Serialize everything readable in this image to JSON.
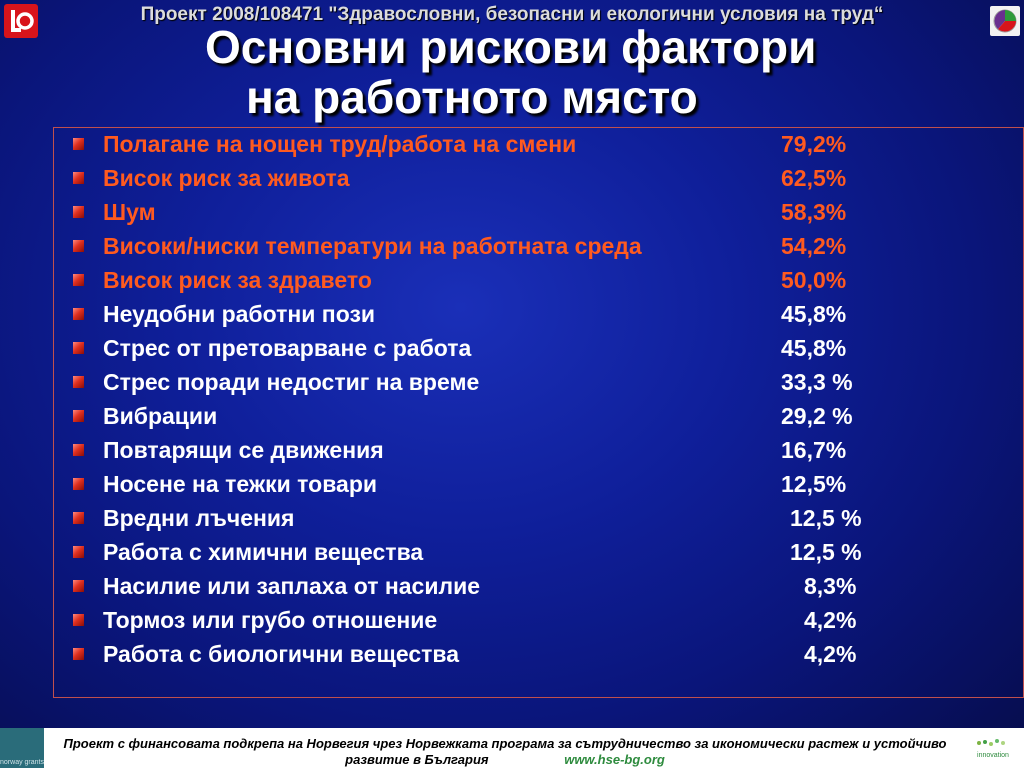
{
  "header": {
    "project_line": "Проект 2008/108471 \"Здравословни, безопасни и екологични условия на труд“"
  },
  "title": {
    "line1": "Основни рискови фактори",
    "line2": "на работното място"
  },
  "risks": [
    {
      "label": "Полагане на нощен труд/работа на смени",
      "value": "79,2%",
      "x": 780
    },
    {
      "label": "Висок риск за живота",
      "value": "62,5%",
      "x": 780
    },
    {
      "label": "Шум",
      "value": "58,3%",
      "x": 780
    },
    {
      "label": "Високи/ниски температури на работната среда",
      "value": "54,2%",
      "x": 780
    },
    {
      "label": "Висок риск за здравето",
      "value": "50,0%",
      "x": 780
    },
    {
      "label": "Неудобни работни пози",
      "value": "45,8%",
      "x": 780
    },
    {
      "label": "Стрес от претоварване с работа",
      "value": "45,8%",
      "x": 780
    },
    {
      "label": "Стрес поради недостиг на време",
      "value": "33,3 %",
      "x": 780
    },
    {
      "label": "Вибрации",
      "value": "29,2 %",
      "x": 780
    },
    {
      "label": "Повтарящи се движения",
      "value": "16,7%",
      "x": 780
    },
    {
      "label": "Носене на тежки товари",
      "value": "12,5%",
      "x": 780
    },
    {
      "label": "Вредни лъчения",
      "value": "12,5 %",
      "x": 789
    },
    {
      "label": "Работа с химични  вещества",
      "value": "12,5 %",
      "x": 789
    },
    {
      "label": "Насилие или заплаха от насилие",
      "value": "8,3%",
      "x": 803
    },
    {
      "label": "Тормоз или грубо отношение",
      "value": "4,2%",
      "x": 803
    },
    {
      "label": "Работа с биологични вещества",
      "value": "4,2%",
      "x": 803
    }
  ],
  "footer": {
    "text": "Проект с финансовата подкрепа на Норвегия чрез Норвежката програма за сътрудничество за икономически растеж и устойчиво развитие в България",
    "url": "www.hse-bg.org",
    "left_logo_text": "norway grants",
    "right_logo_text": "innovation"
  },
  "colors": {
    "highlight": "#ff5a1f",
    "text": "#ffffff",
    "frame": "#c0504d"
  },
  "icons": {
    "left_logo": "union-logo-icon",
    "right_logo": "organization-logo-icon",
    "bullet": "square-bullet-icon"
  }
}
